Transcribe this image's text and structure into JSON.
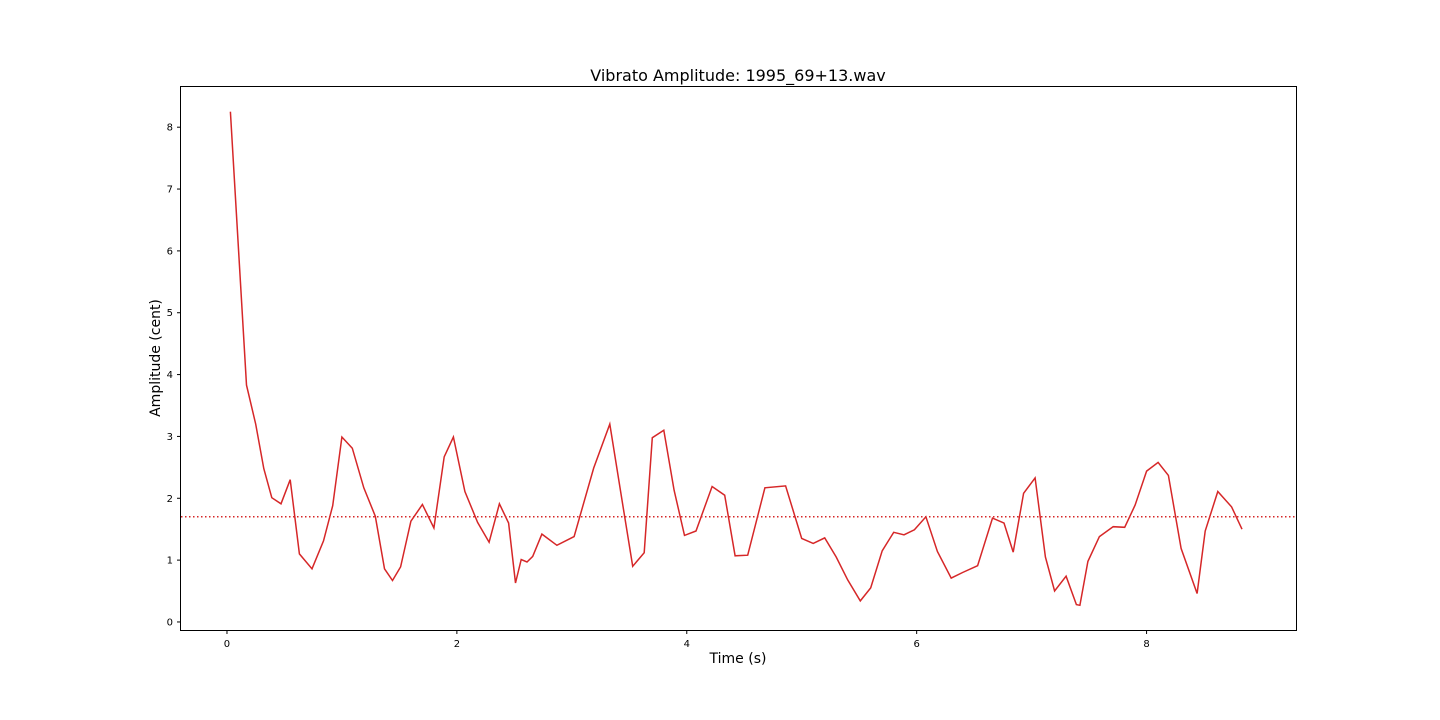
{
  "chart_data": {
    "type": "line",
    "title": "Vibrato Amplitude: 1995_69+13.wav",
    "xlabel": "Time (s)",
    "ylabel": "Amplitude (cent)",
    "xlim": [
      -0.4,
      9.3
    ],
    "ylim": [
      -0.13,
      8.65
    ],
    "xticks": [
      0,
      2,
      4,
      6,
      8
    ],
    "yticks": [
      0,
      1,
      2,
      3,
      4,
      5,
      6,
      7,
      8
    ],
    "grid": false,
    "colors": {
      "series": "#d62728",
      "mean": "#d62728"
    },
    "series": [
      {
        "style": "solid",
        "x": [
          0.03,
          0.17,
          0.25,
          0.32,
          0.39,
          0.47,
          0.55,
          0.63,
          0.74,
          0.84,
          0.92,
          1.0,
          1.09,
          1.19,
          1.29,
          1.37,
          1.44,
          1.51,
          1.6,
          1.7,
          1.8,
          1.89,
          1.97,
          2.07,
          2.18,
          2.28,
          2.37,
          2.45,
          2.51,
          2.56,
          2.61,
          2.66,
          2.74,
          2.87,
          3.02,
          3.19,
          3.33,
          3.43,
          3.53,
          3.63,
          3.7,
          3.8,
          3.89,
          3.98,
          4.08,
          4.22,
          4.33,
          4.42,
          4.53,
          4.68,
          4.86,
          5.0,
          5.1,
          5.2,
          5.3,
          5.4,
          5.51,
          5.6,
          5.7,
          5.8,
          5.89,
          5.98,
          6.08,
          6.18,
          6.3,
          6.4,
          6.53,
          6.66,
          6.76,
          6.84,
          6.93,
          7.03,
          7.12,
          7.2,
          7.3,
          7.39,
          7.42,
          7.49,
          7.59,
          7.71,
          7.81,
          7.9,
          8.0,
          8.1,
          8.19,
          8.3,
          8.44,
          8.51,
          8.62,
          8.74,
          8.83
        ],
        "y": [
          8.25,
          3.83,
          3.2,
          2.48,
          2.01,
          1.91,
          2.3,
          1.1,
          0.86,
          1.31,
          1.88,
          2.99,
          2.81,
          2.17,
          1.71,
          0.86,
          0.67,
          0.89,
          1.63,
          1.9,
          1.52,
          2.67,
          2.99,
          2.11,
          1.61,
          1.29,
          1.91,
          1.6,
          0.63,
          1.01,
          0.97,
          1.06,
          1.42,
          1.24,
          1.38,
          2.49,
          3.2,
          2.04,
          0.9,
          1.12,
          2.98,
          3.1,
          2.13,
          1.4,
          1.47,
          2.19,
          2.05,
          1.07,
          1.08,
          2.17,
          2.2,
          1.35,
          1.27,
          1.36,
          1.05,
          0.68,
          0.34,
          0.55,
          1.15,
          1.45,
          1.41,
          1.49,
          1.7,
          1.14,
          0.71,
          0.8,
          0.91,
          1.68,
          1.6,
          1.13,
          2.08,
          2.33,
          1.05,
          0.5,
          0.74,
          0.28,
          0.27,
          0.98,
          1.38,
          1.54,
          1.53,
          1.89,
          2.44,
          2.58,
          2.37,
          1.19,
          0.46,
          1.47,
          2.11,
          1.86,
          1.5
        ]
      },
      {
        "style": "dotted",
        "x": [
          -0.4,
          9.3
        ],
        "y": [
          1.7,
          1.7
        ]
      }
    ]
  }
}
